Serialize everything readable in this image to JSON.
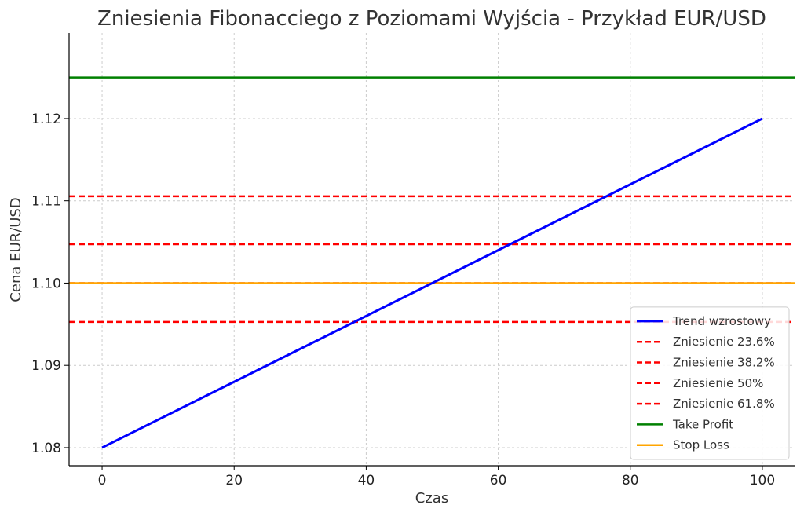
{
  "chart_data": {
    "type": "line",
    "title": "Zniesienia Fibonacciego z Poziomami Wyjścia - Przykład EUR/USD",
    "xlabel": "Czas",
    "ylabel": "Cena EUR/USD",
    "xlim": [
      -5,
      105
    ],
    "ylim": [
      1.0778,
      1.1304
    ],
    "xticks": [
      "0",
      "20",
      "40",
      "60",
      "80",
      "100"
    ],
    "yticks": [
      "1.08",
      "1.09",
      "1.10",
      "1.11",
      "1.12"
    ],
    "grid": true,
    "legend_position": "lower-right",
    "series": [
      {
        "name": "Trend wzrostowy",
        "kind": "line",
        "color": "#0000ff",
        "style": "solid",
        "x": [
          0,
          100
        ],
        "y": [
          1.08,
          1.12
        ]
      },
      {
        "name": "Zniesienie 23.6%",
        "kind": "hline",
        "color": "#ff0000",
        "style": "dashed",
        "y": 1.11056
      },
      {
        "name": "Zniesienie 38.2%",
        "kind": "hline",
        "color": "#ff0000",
        "style": "dashed",
        "y": 1.10472
      },
      {
        "name": "Zniesienie 50%",
        "kind": "hline",
        "color": "#ff0000",
        "style": "dashed",
        "y": 1.1
      },
      {
        "name": "Zniesienie 61.8%",
        "kind": "hline",
        "color": "#ff0000",
        "style": "dashed",
        "y": 1.09528
      },
      {
        "name": "Take Profit",
        "kind": "hline",
        "color": "#008000",
        "style": "solid",
        "y": 1.125
      },
      {
        "name": "Stop Loss",
        "kind": "hline",
        "color": "#ffa500",
        "style": "solid",
        "y": 1.1
      }
    ]
  }
}
